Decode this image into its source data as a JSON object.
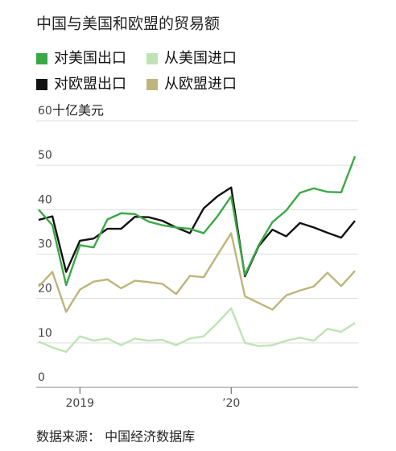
{
  "chart_data": {
    "type": "line",
    "title": "中国与美国和欧盟的贸易额",
    "y_label": "十亿美元",
    "source": "数据来源： 中国经济数据库",
    "categories": [
      null,
      null,
      null,
      "2019",
      null,
      null,
      null,
      null,
      null,
      null,
      null,
      null,
      null,
      null,
      "’20",
      null,
      null,
      null,
      null,
      null,
      null,
      null,
      null,
      null
    ],
    "series": [
      {
        "name": "对美国出口",
        "color": "#3aa845",
        "values": [
          40,
          36.5,
          23,
          32,
          31.5,
          37.8,
          39.2,
          39,
          37.3,
          36.5,
          36,
          35.7,
          34.7,
          38.5,
          43,
          25.3,
          32,
          37.2,
          39.8,
          43.8,
          44.8,
          44,
          43.9,
          52
        ]
      },
      {
        "name": "从美国进口",
        "color": "#bfe3b4",
        "values": [
          10.3,
          9,
          8,
          11.5,
          10.5,
          11,
          9.5,
          11,
          10.5,
          10.7,
          9.5,
          11,
          11.5,
          14.5,
          17.8,
          10,
          9.3,
          9.5,
          10.5,
          11.2,
          10.5,
          13.2,
          12.5,
          14.5
        ]
      },
      {
        "name": "对欧盟出口",
        "color": "#111111",
        "values": [
          37.7,
          38.5,
          26,
          33,
          33.5,
          35.7,
          35.7,
          38.4,
          38.3,
          37.5,
          36,
          34.7,
          40.3,
          43,
          45,
          25,
          31.8,
          35.5,
          34,
          37,
          36,
          34.8,
          33.7,
          37.5
        ]
      },
      {
        "name": "从欧盟进口",
        "color": "#bdb57a",
        "values": [
          22.7,
          26,
          17,
          22,
          23.8,
          24.3,
          22.3,
          24,
          23.7,
          23.3,
          21,
          25.1,
          24.8,
          29.8,
          34.7,
          20.5,
          19,
          17.5,
          20.7,
          21.8,
          22.7,
          25.8,
          22.8,
          26.2
        ]
      }
    ],
    "ylim": [
      0,
      60
    ],
    "yticks": [
      0,
      10,
      20,
      30,
      40,
      50,
      60
    ],
    "grid": true
  }
}
